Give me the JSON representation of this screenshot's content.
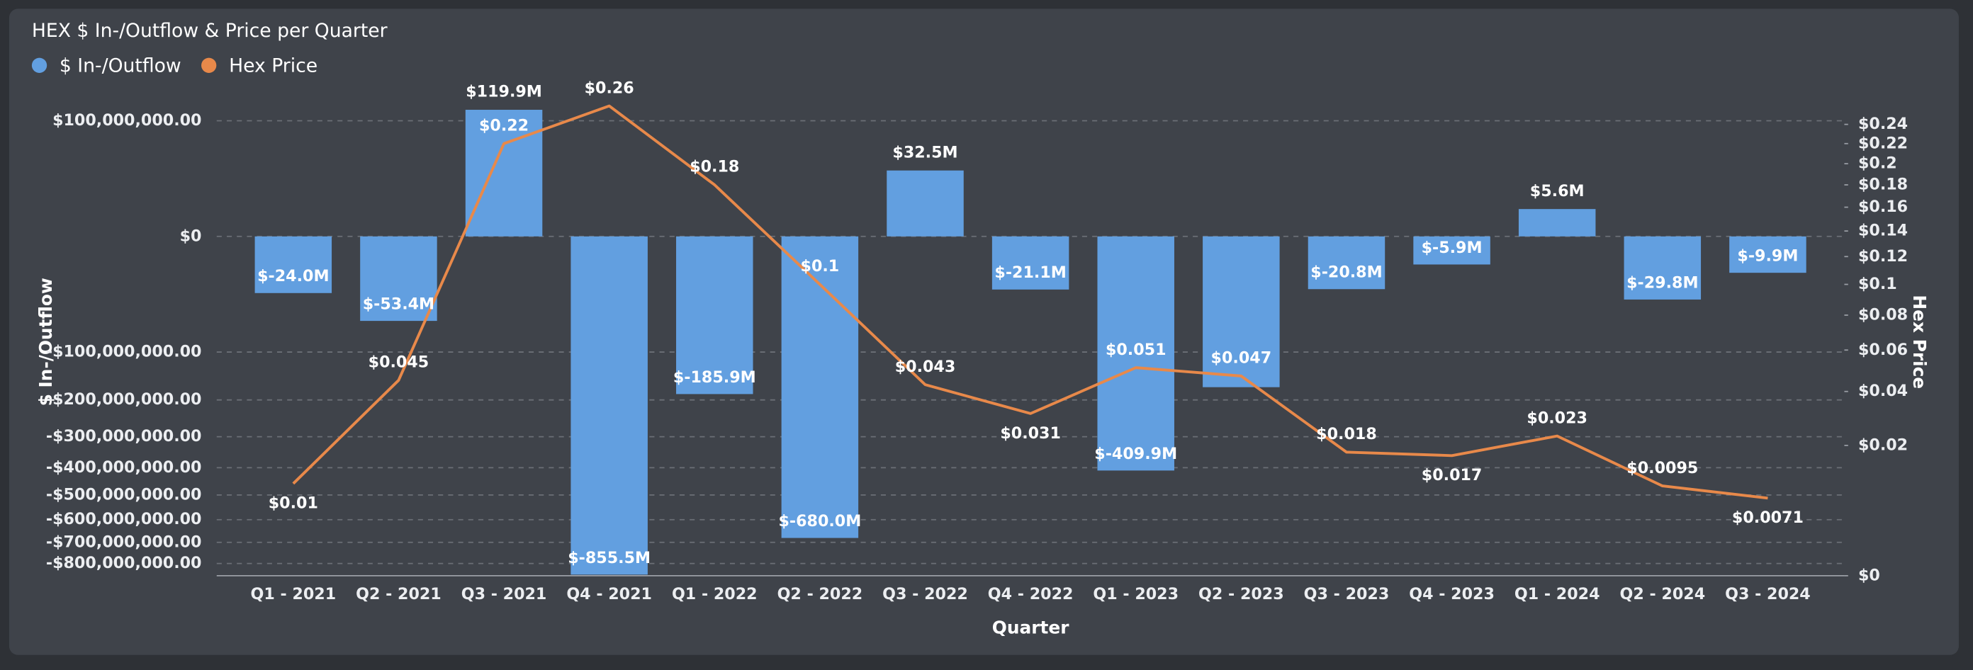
{
  "chart_data": {
    "type": "combo",
    "title": "HEX $ In-/Outflow & Price per Quarter",
    "x_label": "Quarter",
    "y_label": "$ In-/Outflow",
    "y2_label": "Hex Price",
    "legend": "top-left",
    "grid": true,
    "y_scale": "sqrt",
    "y2_scale": "sqrt",
    "categories": [
      "Q1 - 2021",
      "Q2 - 2021",
      "Q3 - 2021",
      "Q4 - 2021",
      "Q1 - 2022",
      "Q2 - 2022",
      "Q3 - 2022",
      "Q4 - 2022",
      "Q1 - 2023",
      "Q2 - 2023",
      "Q3 - 2023",
      "Q4 - 2023",
      "Q1 - 2024",
      "Q2 - 2024",
      "Q3 - 2024"
    ],
    "series": [
      {
        "name": "$ In-/Outflow",
        "type": "bar",
        "axis": "y",
        "color": "#629fe0",
        "values": [
          -24000000,
          -53400000,
          119900000,
          -855500000,
          -185900000,
          -680000000,
          32500000,
          -21100000,
          -409900000,
          -170000000,
          -20800000,
          -5900000,
          5600000,
          -29800000,
          -9900000
        ],
        "value_labels": [
          "$-24.0M",
          "$-53.4M",
          "$119.9M",
          "$-855.5M",
          "$-185.9M",
          "$-680.0M",
          "$32.5M",
          "$-21.1M",
          "$-409.9M",
          null,
          "$-20.8M",
          "$-5.9M",
          "$5.6M",
          "$-29.8M",
          "$-9.9M"
        ]
      },
      {
        "name": "Hex Price",
        "type": "line",
        "axis": "y2",
        "color": "#e8894a",
        "values": [
          0.01,
          0.045,
          0.22,
          0.26,
          0.18,
          0.1,
          0.043,
          0.031,
          0.051,
          0.047,
          0.018,
          0.017,
          0.023,
          0.0095,
          0.0071
        ],
        "value_labels": [
          "$0.01",
          "$0.045",
          "$0.22",
          "$0.26",
          "$0.18",
          "$0.1",
          "$0.043",
          "$0.031",
          "$0.051",
          "$0.047",
          "$0.018",
          "$0.017",
          "$0.023",
          "$0.0095",
          "$0.0071"
        ]
      }
    ],
    "ylim": [
      -861000000,
      138000000
    ],
    "yticks": [
      {
        "value": 100000000,
        "label": "$100,000,000.00"
      },
      {
        "value": 0,
        "label": "$0"
      },
      {
        "value": -100000000,
        "label": "-$100,000,000.00"
      },
      {
        "value": -200000000,
        "label": "-$200,000,000.00"
      },
      {
        "value": -300000000,
        "label": "-$300,000,000.00"
      },
      {
        "value": -400000000,
        "label": "-$400,000,000.00"
      },
      {
        "value": -500000000,
        "label": "-$500,000,000.00"
      },
      {
        "value": -600000000,
        "label": "-$600,000,000.00"
      },
      {
        "value": -700000000,
        "label": "-$700,000,000.00"
      },
      {
        "value": -800000000,
        "label": "-$800,000,000.00"
      }
    ],
    "y2lim": [
      0,
      0.266
    ],
    "y2ticks": [
      {
        "value": 0,
        "label": "$0"
      },
      {
        "value": 0.02,
        "label": "$0.02"
      },
      {
        "value": 0.04,
        "label": "$0.04"
      },
      {
        "value": 0.06,
        "label": "$0.06"
      },
      {
        "value": 0.08,
        "label": "$0.08"
      },
      {
        "value": 0.1,
        "label": "$0.1"
      },
      {
        "value": 0.12,
        "label": "$0.12"
      },
      {
        "value": 0.14,
        "label": "$0.14"
      },
      {
        "value": 0.16,
        "label": "$0.16"
      },
      {
        "value": 0.18,
        "label": "$0.18"
      },
      {
        "value": 0.2,
        "label": "$0.2"
      },
      {
        "value": 0.22,
        "label": "$0.22"
      },
      {
        "value": 0.24,
        "label": "$0.24"
      }
    ]
  }
}
